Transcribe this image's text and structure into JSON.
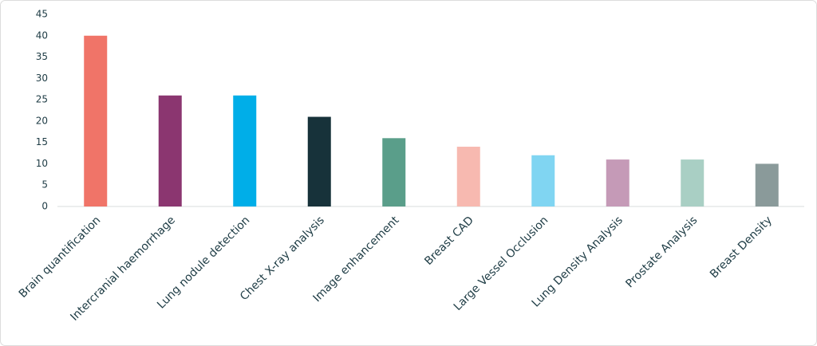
{
  "chart_data": {
    "type": "bar",
    "categories": [
      "Brain quantification",
      "Intercranial haemorrhage",
      "Lung nodule detection",
      "Chest X-ray analysis",
      "Image enhancement",
      "Breast CAD",
      "Large Vessel Occlusion",
      "Lung Density Analysis",
      "Prostate Analysis",
      "Breast Density"
    ],
    "values": [
      40,
      26,
      26,
      21,
      16,
      14,
      12,
      11,
      11,
      10
    ],
    "colors": [
      "#f07468",
      "#8b3670",
      "#00aee8",
      "#17323a",
      "#5a9e8a",
      "#f7b9b0",
      "#80d5f2",
      "#c59ab7",
      "#a9cfc4",
      "#8a9a9a"
    ],
    "ylim": [
      0,
      45
    ],
    "yticks": [
      0,
      5,
      10,
      15,
      20,
      25,
      30,
      35,
      40,
      45
    ],
    "grid": false
  }
}
